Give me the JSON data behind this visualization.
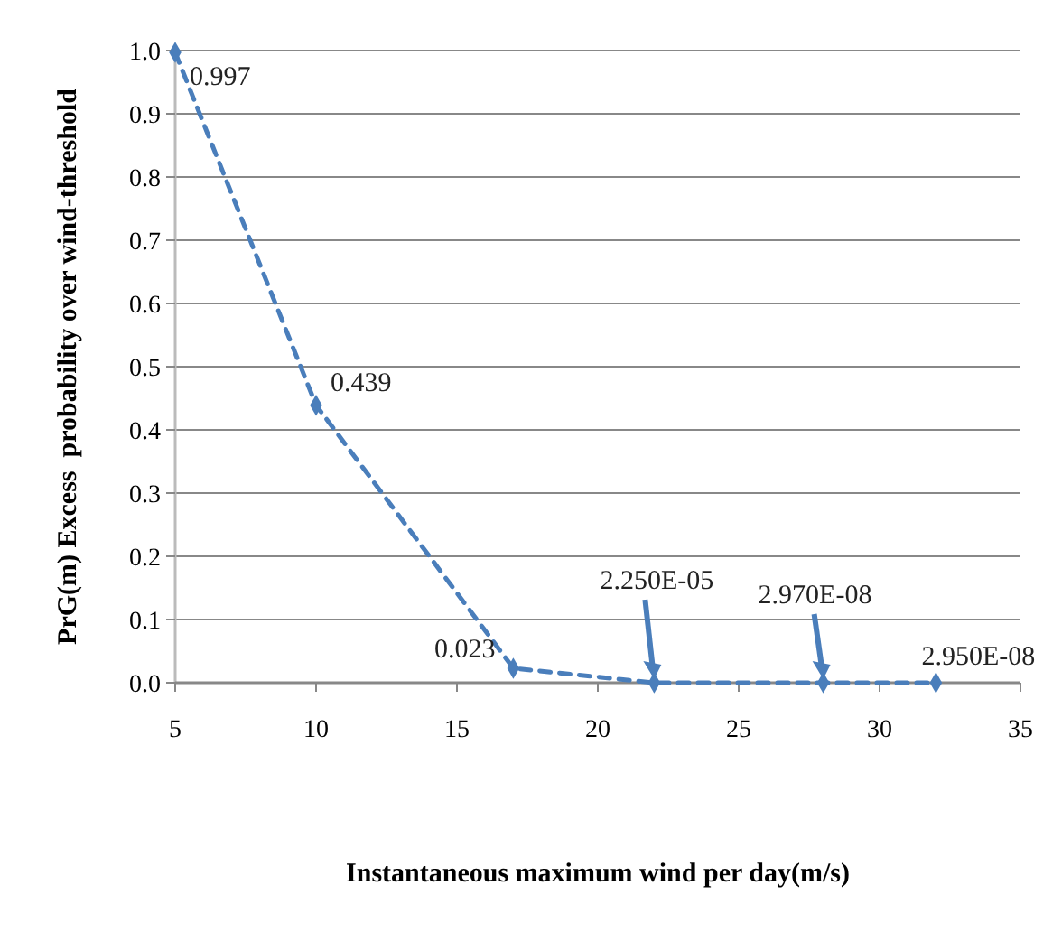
{
  "chart_data": {
    "type": "line",
    "xlabel": "Instantaneous maximum wind per day(m/s)",
    "ylabel": "PrG(m) Excess  probability over wind-threshold",
    "x": [
      5,
      10,
      17,
      22,
      28,
      32
    ],
    "series": [
      {
        "color": "#4a7ebb",
        "values": [
          0.997,
          0.439,
          0.023,
          2.25e-05,
          2.97e-08,
          2.95e-08
        ],
        "value_labels": [
          "0.997",
          "0.439",
          "0.023",
          "2.250E-05",
          "2.970E-08",
          "2.950E-08"
        ]
      }
    ],
    "xlim": [
      5,
      35
    ],
    "xticks": [
      5,
      10,
      15,
      20,
      25,
      30,
      35
    ],
    "ylim": [
      0,
      1
    ],
    "yticks": [
      {
        "value": 0,
        "label": "0.0"
      },
      {
        "value": 0.1,
        "label": "0.1"
      },
      {
        "value": 0.2,
        "label": "0.2"
      },
      {
        "value": 0.3,
        "label": "0.3"
      },
      {
        "value": 0.4,
        "label": "0.4"
      },
      {
        "value": 0.5,
        "label": "0.5"
      },
      {
        "value": 0.6,
        "label": "0.6"
      },
      {
        "value": 0.7,
        "label": "0.7"
      },
      {
        "value": 0.8,
        "label": "0.8"
      },
      {
        "value": 0.9,
        "label": "0.9"
      },
      {
        "value": 1,
        "label": "1.0"
      }
    ],
    "grid": "y",
    "marker": "diamond",
    "line_style": "dashed"
  }
}
